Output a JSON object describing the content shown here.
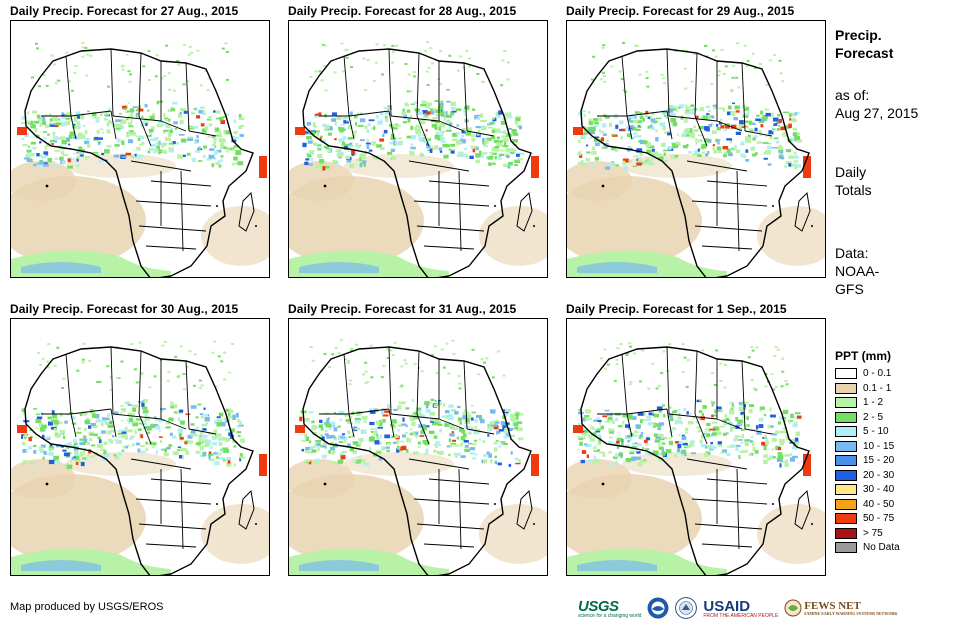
{
  "panels": [
    {
      "title": "Daily Precip. Forecast for 27 Aug., 2015"
    },
    {
      "title": "Daily Precip. Forecast for 28 Aug., 2015"
    },
    {
      "title": "Daily Precip. Forecast for 29 Aug., 2015"
    },
    {
      "title": "Daily Precip. Forecast for 30 Aug., 2015"
    },
    {
      "title": "Daily Precip. Forecast for 31 Aug., 2015"
    },
    {
      "title": "Daily Precip. Forecast for 1 Sep., 2015"
    }
  ],
  "side": {
    "heading_line1": "Precip.",
    "heading_line2": "Forecast",
    "asof_label": "as of:",
    "asof_date": "Aug 27, 2015",
    "totals_line1": "Daily",
    "totals_line2": "Totals",
    "data_label": "Data:",
    "data_line1": "NOAA-",
    "data_line2": "GFS"
  },
  "legend": {
    "title": "PPT (mm)",
    "items": [
      {
        "label": "0 - 0.1",
        "color": "#ffffff"
      },
      {
        "label": "0.1 - 1",
        "color": "#e8d3b0"
      },
      {
        "label": "1 - 2",
        "color": "#b7f2a6"
      },
      {
        "label": "2 - 5",
        "color": "#72de62"
      },
      {
        "label": "5 - 10",
        "color": "#b2eef5"
      },
      {
        "label": "10 - 15",
        "color": "#78b9f0"
      },
      {
        "label": "15 - 20",
        "color": "#4a8fe8"
      },
      {
        "label": "20 - 30",
        "color": "#1f5fe0"
      },
      {
        "label": "30 - 40",
        "color": "#ffe88a"
      },
      {
        "label": "40 - 50",
        "color": "#f5a21a"
      },
      {
        "label": "50 - 75",
        "color": "#ef3a10"
      },
      {
        "label": "> 75",
        "color": "#a81414"
      },
      {
        "label": "No Data",
        "color": "#9a9a9a"
      }
    ]
  },
  "footer": {
    "credit": "Map produced by USGS/EROS",
    "logos": {
      "usgs": "USGS",
      "usgs_tagline": "science for a changing world",
      "usaid": "USAID",
      "usaid_tagline": "FROM THE AMERICAN PEOPLE",
      "fews": "FEWS NET",
      "fews_tagline": "FAMINE EARLY WARNING SYSTEMS NETWORK"
    }
  }
}
